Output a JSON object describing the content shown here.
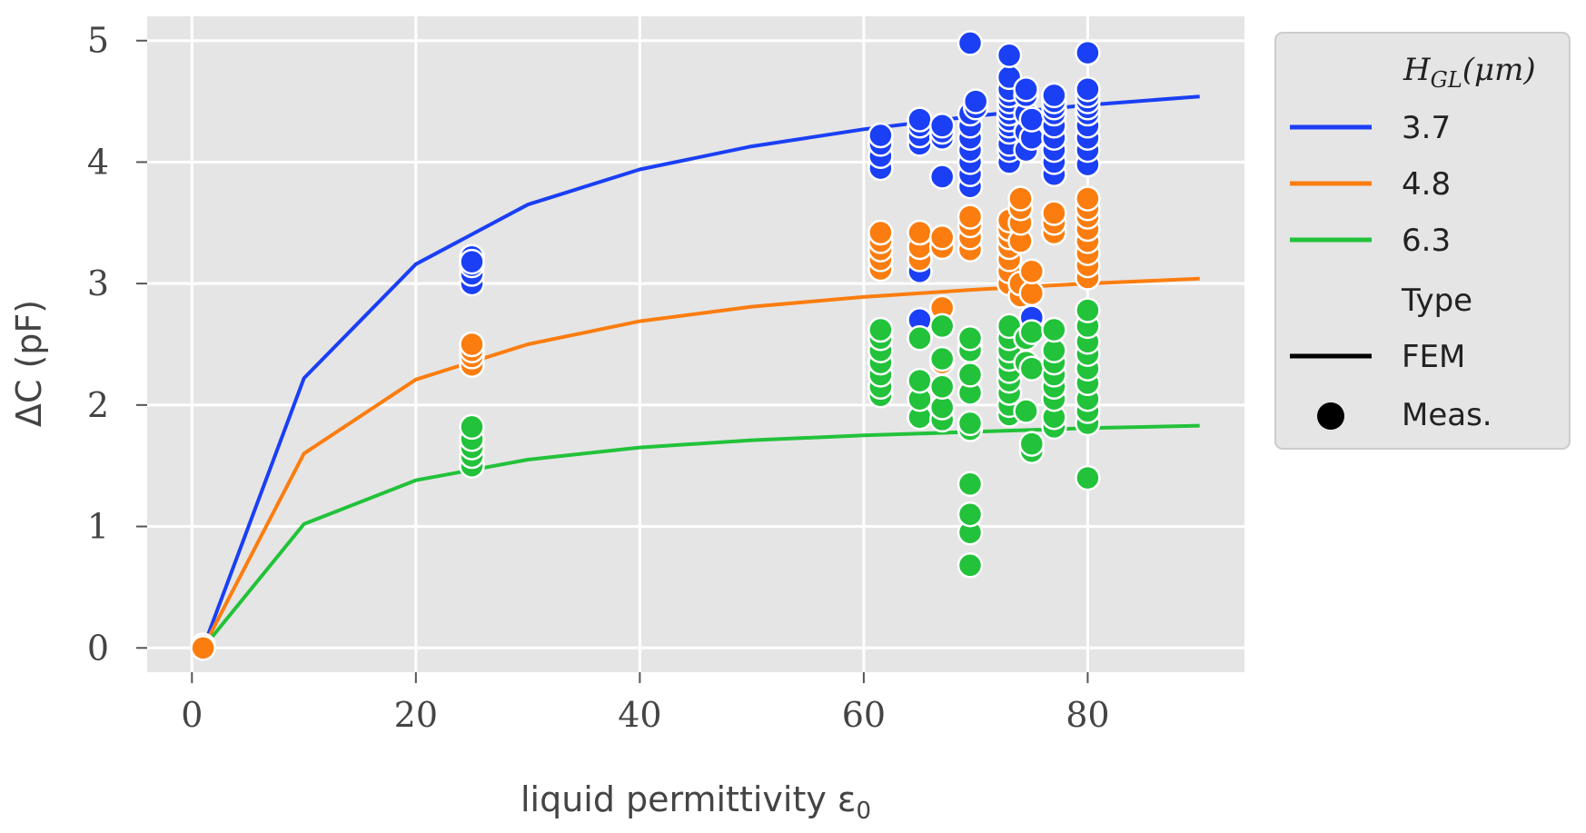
{
  "chart_data": {
    "type": "scatter",
    "xlabel": "liquid permittivity ε",
    "xlabel_sub": "0",
    "ylabel": "ΔC (pF)",
    "xlim": [
      -4,
      94
    ],
    "ylim": [
      -0.2,
      5.2
    ],
    "x_ticks": [
      0,
      20,
      40,
      60,
      80
    ],
    "y_ticks": [
      0,
      1,
      2,
      3,
      4,
      5
    ],
    "grid": true,
    "legend": {
      "position": "outside-right",
      "title": "H",
      "title_sub": "GL",
      "title_unit": "(μm)",
      "type_title": "Type",
      "entries": [
        {
          "label": "3.7",
          "color": "#1a3ff5"
        },
        {
          "label": "4.8",
          "color": "#fb7d0f"
        },
        {
          "label": "6.3",
          "color": "#22c23a"
        }
      ],
      "type_entries": [
        {
          "label": "FEM",
          "marker": "line"
        },
        {
          "label": "Meas.",
          "marker": "dot"
        }
      ]
    },
    "fem_x": [
      1,
      10,
      20,
      30,
      40,
      50,
      60,
      70,
      80,
      90
    ],
    "series": [
      {
        "name": "3.7",
        "color": "#1a3ff5",
        "fem_values": [
          0,
          2.22,
          3.16,
          3.65,
          3.94,
          4.13,
          4.27,
          4.38,
          4.47,
          4.54
        ],
        "meas": [
          [
            1,
            0.02
          ],
          [
            25,
            3.0
          ],
          [
            25,
            3.08
          ],
          [
            25,
            3.15
          ],
          [
            25,
            3.22
          ],
          [
            25,
            3.18
          ],
          [
            61.5,
            3.95
          ],
          [
            61.5,
            4.05
          ],
          [
            61.5,
            4.15
          ],
          [
            61.5,
            4.22
          ],
          [
            65,
            2.7
          ],
          [
            65,
            3.1
          ],
          [
            65,
            4.15
          ],
          [
            65,
            4.22
          ],
          [
            65,
            4.3
          ],
          [
            65,
            4.35
          ],
          [
            67,
            3.88
          ],
          [
            67,
            4.2
          ],
          [
            67,
            4.25
          ],
          [
            67,
            4.3
          ],
          [
            69.5,
            3.8
          ],
          [
            69.5,
            3.9
          ],
          [
            69.5,
            4.0
          ],
          [
            69.5,
            4.1
          ],
          [
            69.5,
            4.2
          ],
          [
            69.5,
            4.3
          ],
          [
            69.5,
            4.4
          ],
          [
            69.5,
            4.98
          ],
          [
            70,
            4.45
          ],
          [
            70,
            4.5
          ],
          [
            73,
            4.0
          ],
          [
            73,
            4.1
          ],
          [
            73,
            4.15
          ],
          [
            73,
            4.25
          ],
          [
            73,
            4.3
          ],
          [
            73,
            4.35
          ],
          [
            73,
            4.4
          ],
          [
            73,
            4.45
          ],
          [
            73,
            4.5
          ],
          [
            73,
            4.55
          ],
          [
            73,
            4.6
          ],
          [
            73,
            4.7
          ],
          [
            73,
            4.88
          ],
          [
            74.5,
            4.1
          ],
          [
            74.5,
            4.25
          ],
          [
            74.5,
            4.4
          ],
          [
            74.5,
            4.55
          ],
          [
            74.5,
            4.6
          ],
          [
            75,
            2.72
          ],
          [
            75,
            4.2
          ],
          [
            75,
            4.35
          ],
          [
            77,
            3.9
          ],
          [
            77,
            4.0
          ],
          [
            77,
            4.1
          ],
          [
            77,
            4.2
          ],
          [
            77,
            4.3
          ],
          [
            77,
            4.4
          ],
          [
            77,
            4.45
          ],
          [
            77,
            4.5
          ],
          [
            77,
            4.55
          ],
          [
            80,
            3.98
          ],
          [
            80,
            4.1
          ],
          [
            80,
            4.2
          ],
          [
            80,
            4.3
          ],
          [
            80,
            4.4
          ],
          [
            80,
            4.45
          ],
          [
            80,
            4.5
          ],
          [
            80,
            4.55
          ],
          [
            80,
            4.6
          ],
          [
            80,
            4.9
          ]
        ]
      },
      {
        "name": "4.8",
        "color": "#fb7d0f",
        "fem_values": [
          0,
          1.6,
          2.21,
          2.5,
          2.69,
          2.81,
          2.89,
          2.95,
          3.0,
          3.04
        ],
        "meas": [
          [
            1,
            0.0
          ],
          [
            25,
            2.33
          ],
          [
            25,
            2.4
          ],
          [
            25,
            2.45
          ],
          [
            25,
            2.5
          ],
          [
            61.5,
            3.12
          ],
          [
            61.5,
            3.2
          ],
          [
            61.5,
            3.28
          ],
          [
            61.5,
            3.35
          ],
          [
            61.5,
            3.42
          ],
          [
            65,
            3.2
          ],
          [
            65,
            3.3
          ],
          [
            65,
            3.42
          ],
          [
            67,
            2.8
          ],
          [
            67,
            2.35
          ],
          [
            67,
            3.3
          ],
          [
            67,
            3.38
          ],
          [
            69.5,
            2.48
          ],
          [
            69.5,
            3.28
          ],
          [
            69.5,
            3.38
          ],
          [
            69.5,
            3.48
          ],
          [
            69.5,
            3.55
          ],
          [
            73,
            3.0
          ],
          [
            73,
            3.1
          ],
          [
            73,
            3.2
          ],
          [
            73,
            3.3
          ],
          [
            73,
            3.38
          ],
          [
            73,
            3.45
          ],
          [
            73,
            3.52
          ],
          [
            74,
            2.9
          ],
          [
            74,
            3.0
          ],
          [
            74,
            3.35
          ],
          [
            74,
            3.5
          ],
          [
            74,
            3.62
          ],
          [
            74,
            3.7
          ],
          [
            75,
            2.92
          ],
          [
            75,
            3.1
          ],
          [
            77,
            3.42
          ],
          [
            77,
            3.5
          ],
          [
            77,
            3.58
          ],
          [
            80,
            3.05
          ],
          [
            80,
            3.15
          ],
          [
            80,
            3.25
          ],
          [
            80,
            3.35
          ],
          [
            80,
            3.45
          ],
          [
            80,
            3.55
          ],
          [
            80,
            3.62
          ],
          [
            80,
            3.7
          ]
        ]
      },
      {
        "name": "6.3",
        "color": "#22c23a",
        "fem_values": [
          0,
          1.02,
          1.38,
          1.55,
          1.65,
          1.71,
          1.75,
          1.78,
          1.81,
          1.83
        ],
        "meas": [
          [
            25,
            1.5
          ],
          [
            25,
            1.58
          ],
          [
            25,
            1.65
          ],
          [
            25,
            1.72
          ],
          [
            25,
            1.82
          ],
          [
            61.5,
            2.08
          ],
          [
            61.5,
            2.15
          ],
          [
            61.5,
            2.25
          ],
          [
            61.5,
            2.35
          ],
          [
            61.5,
            2.45
          ],
          [
            61.5,
            2.55
          ],
          [
            61.5,
            2.62
          ],
          [
            65,
            1.9
          ],
          [
            65,
            2.05
          ],
          [
            65,
            2.2
          ],
          [
            65,
            2.55
          ],
          [
            67,
            1.88
          ],
          [
            67,
            1.98
          ],
          [
            67,
            2.15
          ],
          [
            67,
            2.38
          ],
          [
            67,
            2.65
          ],
          [
            69.5,
            0.68
          ],
          [
            69.5,
            0.95
          ],
          [
            69.5,
            1.1
          ],
          [
            69.5,
            1.35
          ],
          [
            69.5,
            1.8
          ],
          [
            69.5,
            1.85
          ],
          [
            69.5,
            2.1
          ],
          [
            69.5,
            2.25
          ],
          [
            69.5,
            2.45
          ],
          [
            69.5,
            2.55
          ],
          [
            73,
            1.92
          ],
          [
            73,
            2.0
          ],
          [
            73,
            2.1
          ],
          [
            73,
            2.2
          ],
          [
            73,
            2.28
          ],
          [
            73,
            2.38
          ],
          [
            73,
            2.45
          ],
          [
            73,
            2.55
          ],
          [
            73,
            2.65
          ],
          [
            74.5,
            1.95
          ],
          [
            74.5,
            2.35
          ],
          [
            74.5,
            2.55
          ],
          [
            75,
            1.62
          ],
          [
            75,
            1.68
          ],
          [
            75,
            2.3
          ],
          [
            75,
            2.6
          ],
          [
            77,
            1.82
          ],
          [
            77,
            1.9
          ],
          [
            77,
            2.05
          ],
          [
            77,
            2.15
          ],
          [
            77,
            2.25
          ],
          [
            77,
            2.35
          ],
          [
            77,
            2.45
          ],
          [
            77,
            2.62
          ],
          [
            80,
            1.4
          ],
          [
            80,
            1.85
          ],
          [
            80,
            1.95
          ],
          [
            80,
            2.05
          ],
          [
            80,
            2.18
          ],
          [
            80,
            2.3
          ],
          [
            80,
            2.42
          ],
          [
            80,
            2.52
          ],
          [
            80,
            2.65
          ],
          [
            80,
            2.78
          ]
        ]
      }
    ]
  }
}
